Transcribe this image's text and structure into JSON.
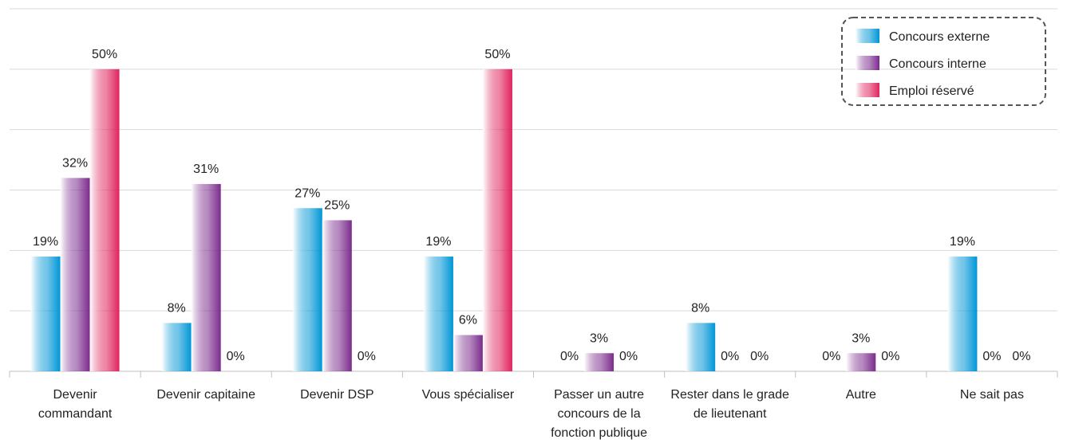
{
  "chart_data": {
    "type": "bar",
    "categories": [
      "Devenir commandant",
      "Devenir capitaine",
      "Devenir DSP",
      "Vous spécialiser",
      "Passer un autre concours de la fonction publique",
      "Rester dans le grade de lieutenant",
      "Autre",
      "Ne sait pas"
    ],
    "series": [
      {
        "name": "Concours externe",
        "color": "#0096d6",
        "values": [
          19,
          8,
          27,
          19,
          0,
          8,
          0,
          19
        ],
        "value_labels": [
          "19%",
          "8%",
          "27%",
          "19%",
          "0%",
          "8%",
          "0%",
          "19%"
        ]
      },
      {
        "name": "Concours interne",
        "color": "#7b2c8c",
        "values": [
          32,
          31,
          25,
          6,
          3,
          0,
          3,
          0
        ],
        "value_labels": [
          "32%",
          "31%",
          "25%",
          "6%",
          "3%",
          "0%",
          "3%",
          "0%"
        ]
      },
      {
        "name": "Emploi réservé",
        "color": "#e0245e",
        "values": [
          50,
          0,
          0,
          50,
          0,
          0,
          0,
          0
        ],
        "value_labels": [
          "50%",
          "0%",
          "0%",
          "50%",
          "0%",
          "0%",
          "0%",
          "0%"
        ]
      }
    ],
    "ylim": [
      0,
      60
    ],
    "yticks": [
      0,
      10,
      20,
      30,
      40,
      50,
      60
    ],
    "grid": true,
    "legend": "top-right"
  }
}
